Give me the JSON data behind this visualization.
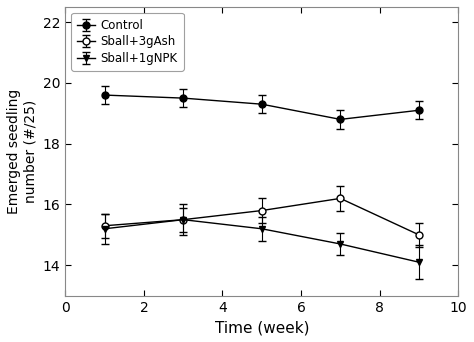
{
  "x": [
    1,
    3,
    5,
    7,
    9
  ],
  "control_y": [
    19.6,
    19.5,
    19.3,
    18.8,
    19.1
  ],
  "control_yerr": [
    0.3,
    0.3,
    0.3,
    0.3,
    0.3
  ],
  "sball3gash_y": [
    15.3,
    15.5,
    15.8,
    16.2,
    15.0
  ],
  "sball3gash_yerr": [
    0.4,
    0.5,
    0.4,
    0.4,
    0.4
  ],
  "sball1gnpk_y": [
    15.2,
    15.5,
    15.2,
    14.7,
    14.1
  ],
  "sball1gnpk_yerr": [
    0.5,
    0.4,
    0.4,
    0.35,
    0.55
  ],
  "xlabel": "Time (week)",
  "ylabel": "Emerged seedling\nnumber (#/25)",
  "xlim": [
    0,
    10
  ],
  "ylim": [
    13,
    22.5
  ],
  "yticks": [
    14,
    16,
    18,
    20,
    22
  ],
  "xticks": [
    0,
    2,
    4,
    6,
    8,
    10
  ],
  "legend_labels": [
    "Control",
    "Sball+3gAsh",
    "Sball+1gNPK"
  ],
  "line_color": "#000000",
  "bg_color": "#ffffff",
  "spine_color": "#888888"
}
